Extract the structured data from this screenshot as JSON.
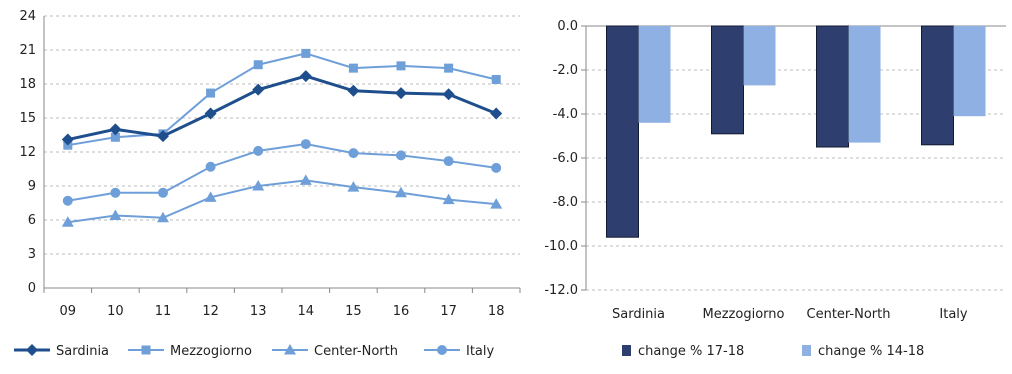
{
  "colors": {
    "sardinia": "#1f4e8c",
    "mezzogiorno": "#6f9fd8",
    "center_north": "#6f9fd8",
    "italy": "#6f9fd8",
    "bar_dark": "#2e3e6e",
    "bar_light": "#8eb0e2",
    "grid": "#bdbdbd",
    "axis": "#888888"
  },
  "chart_data": [
    {
      "type": "line",
      "title": "",
      "xlabel": "",
      "ylabel": "",
      "categories": [
        "09",
        "10",
        "11",
        "12",
        "13",
        "14",
        "15",
        "16",
        "17",
        "18"
      ],
      "ylim": [
        0,
        24
      ],
      "yticks": [
        "0",
        "3",
        "6",
        "9",
        "12",
        "15",
        "18",
        "21",
        "24"
      ],
      "grid": true,
      "legend_position": "bottom",
      "series": [
        {
          "name": "Sardinia",
          "marker": "diamond",
          "values": [
            13.1,
            14.0,
            13.4,
            15.4,
            17.5,
            18.7,
            17.4,
            17.2,
            17.1,
            15.4
          ]
        },
        {
          "name": "Mezzogiorno",
          "marker": "square",
          "values": [
            12.6,
            13.3,
            13.6,
            17.2,
            19.7,
            20.7,
            19.4,
            19.6,
            19.4,
            18.4
          ]
        },
        {
          "name": "Center-North",
          "marker": "triangle",
          "values": [
            5.8,
            6.4,
            6.2,
            8.0,
            9.0,
            9.5,
            8.9,
            8.4,
            7.8,
            7.4
          ]
        },
        {
          "name": "Italy",
          "marker": "circle",
          "values": [
            7.7,
            8.4,
            8.4,
            10.7,
            12.1,
            12.7,
            11.9,
            11.7,
            11.2,
            10.6
          ]
        }
      ]
    },
    {
      "type": "bar",
      "title": "",
      "xlabel": "",
      "ylabel": "",
      "categories": [
        "Sardinia",
        "Mezzogiorno",
        "Center-North",
        "Italy"
      ],
      "ylim": [
        -12,
        0
      ],
      "yticks": [
        "0.0",
        "-2.0",
        "-4.0",
        "-6.0",
        "-8.0",
        "-10.0",
        "-12.0"
      ],
      "grid": true,
      "legend_position": "bottom",
      "series": [
        {
          "name": "change % 17-18",
          "values": [
            -9.6,
            -4.9,
            -5.5,
            -5.4
          ]
        },
        {
          "name": "change % 14-18",
          "values": [
            -4.4,
            -2.7,
            -5.3,
            -4.1
          ]
        }
      ]
    }
  ]
}
